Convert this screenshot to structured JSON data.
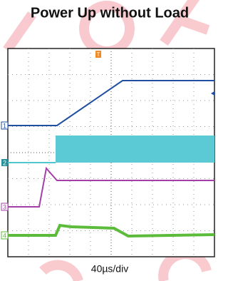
{
  "title": "Power Up without Load",
  "timebase": "40µs/div",
  "trigger": "T",
  "channels": [
    {
      "label": "1"
    },
    {
      "label": "2"
    },
    {
      "label": "3"
    },
    {
      "label": "4"
    }
  ]
}
